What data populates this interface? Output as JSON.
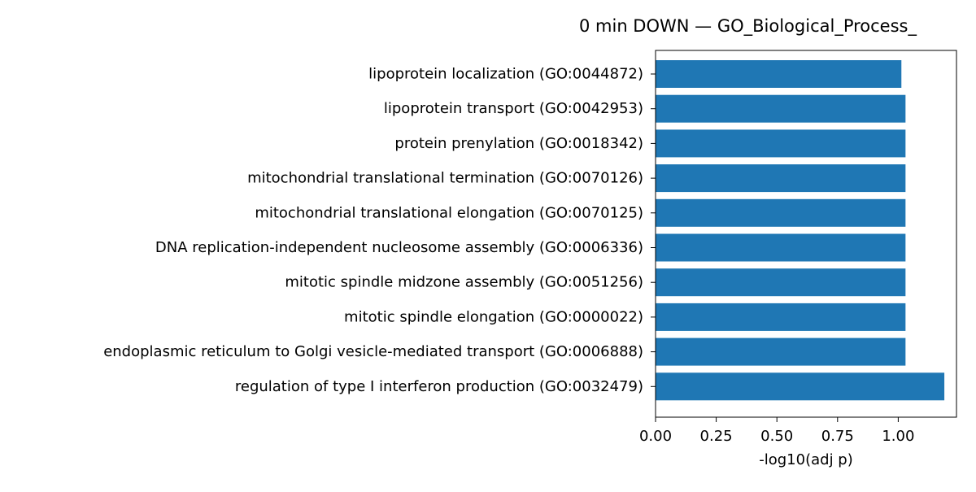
{
  "chart_data": {
    "type": "bar",
    "orientation": "horizontal",
    "title": "0 min DOWN — GO_Biological_Process_",
    "xlabel": "-log10(adj p)",
    "ylabel": "",
    "xlim": [
      0,
      1.24
    ],
    "xticks": [
      "0.00",
      "0.25",
      "0.50",
      "0.75",
      "1.00"
    ],
    "xtick_values": [
      0,
      0.25,
      0.5,
      0.75,
      1.0
    ],
    "grid": false,
    "bar_color": "#1f77b4",
    "categories": [
      "lipoprotein localization (GO:0044872)",
      "lipoprotein transport (GO:0042953)",
      "protein prenylation (GO:0018342)",
      "mitochondrial translational termination (GO:0070126)",
      "mitochondrial translational elongation (GO:0070125)",
      "DNA replication-independent nucleosome assembly (GO:0006336)",
      "mitotic spindle midzone assembly (GO:0051256)",
      "mitotic spindle elongation (GO:0000022)",
      "endoplasmic reticulum to Golgi vesicle-mediated transport (GO:0006888)",
      "regulation of type I interferon production (GO:0032479)"
    ],
    "values": [
      1.013,
      1.03,
      1.03,
      1.03,
      1.03,
      1.03,
      1.03,
      1.03,
      1.03,
      1.19
    ]
  }
}
